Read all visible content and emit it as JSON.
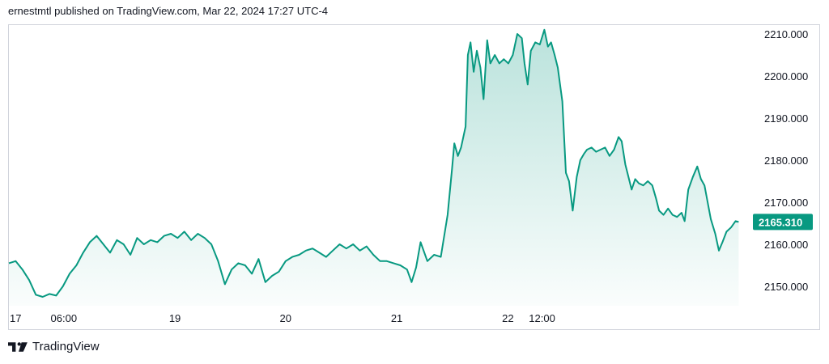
{
  "header": {
    "published_text": "ernestmtl published on TradingView.com, Mar 22, 2024 17:27 UTC-4"
  },
  "footer": {
    "brand_label": "TradingView",
    "logo_icon": "tradingview-logo-icon"
  },
  "colors": {
    "line": "#089981",
    "fill_top": "#089981",
    "price_tag_bg": "#089981",
    "grid_border": "#d1d4dc"
  },
  "chart_data": {
    "type": "area",
    "title": "",
    "xlabel": "",
    "ylabel": "",
    "ylim": [
      2145,
      2212
    ],
    "y_ticks": [
      "2210.000",
      "2200.000",
      "2190.000",
      "2180.000",
      "2170.000",
      "2160.000",
      "2150.000"
    ],
    "x_ticks": [
      "17",
      "06:00",
      "19",
      "20",
      "21",
      "22",
      "12:00"
    ],
    "last_price_label": "2165.310",
    "series": [
      {
        "values": [
          [
            0,
            2155.5
          ],
          [
            1.5,
            2156.0
          ],
          [
            3,
            2154.0
          ],
          [
            4.5,
            2151.5
          ],
          [
            6,
            2148.0
          ],
          [
            7.5,
            2147.5
          ],
          [
            9,
            2148.2
          ],
          [
            10.5,
            2147.8
          ],
          [
            12,
            2150.0
          ],
          [
            13.5,
            2153.0
          ],
          [
            15,
            2155.0
          ],
          [
            16.5,
            2158.0
          ],
          [
            18,
            2160.5
          ],
          [
            19.5,
            2162.0
          ],
          [
            21,
            2160.0
          ],
          [
            22.5,
            2158.0
          ],
          [
            24,
            2161.0
          ],
          [
            25.5,
            2160.0
          ],
          [
            27,
            2157.5
          ],
          [
            28.5,
            2161.5
          ],
          [
            30,
            2160.0
          ],
          [
            31.5,
            2161.0
          ],
          [
            33,
            2160.5
          ],
          [
            34.5,
            2162.0
          ],
          [
            36,
            2162.5
          ],
          [
            37.5,
            2161.5
          ],
          [
            39,
            2163.0
          ],
          [
            40.5,
            2161.0
          ],
          [
            42,
            2162.5
          ],
          [
            43.5,
            2161.5
          ],
          [
            45,
            2160.0
          ],
          [
            46.5,
            2156.0
          ],
          [
            48,
            2150.5
          ],
          [
            49.5,
            2154.0
          ],
          [
            51,
            2155.5
          ],
          [
            52.5,
            2155.0
          ],
          [
            54,
            2153.0
          ],
          [
            55.5,
            2156.5
          ],
          [
            57,
            2151.0
          ],
          [
            58.5,
            2152.5
          ],
          [
            60,
            2153.5
          ],
          [
            61.5,
            2156.0
          ],
          [
            63,
            2157.0
          ],
          [
            64.5,
            2157.5
          ],
          [
            66,
            2158.5
          ],
          [
            67.5,
            2159.0
          ],
          [
            69,
            2158.0
          ],
          [
            70.5,
            2157.0
          ],
          [
            72,
            2158.5
          ],
          [
            73.5,
            2160.0
          ],
          [
            75,
            2159.0
          ],
          [
            76.5,
            2160.0
          ],
          [
            78,
            2158.5
          ],
          [
            79.5,
            2159.5
          ],
          [
            81,
            2157.5
          ],
          [
            82.5,
            2156.0
          ],
          [
            84,
            2156.0
          ],
          [
            85.5,
            2155.5
          ],
          [
            87,
            2155.0
          ],
          [
            88.5,
            2154.0
          ],
          [
            89.5,
            2151.0
          ],
          [
            90.5,
            2154.5
          ],
          [
            91.5,
            2160.5
          ],
          [
            93,
            2156.0
          ],
          [
            94.5,
            2157.5
          ],
          [
            96,
            2157.0
          ],
          [
            97.5,
            2167.0
          ],
          [
            98.5,
            2178.0
          ],
          [
            99,
            2184.0
          ],
          [
            99.8,
            2181.0
          ],
          [
            100.5,
            2183.0
          ],
          [
            101.5,
            2188.0
          ],
          [
            102,
            2205.0
          ],
          [
            102.6,
            2208.0
          ],
          [
            103.3,
            2201.0
          ],
          [
            104,
            2206.0
          ],
          [
            104.8,
            2202.0
          ],
          [
            105.5,
            2194.5
          ],
          [
            106.3,
            2208.5
          ],
          [
            107,
            2203.0
          ],
          [
            108,
            2205.0
          ],
          [
            109,
            2203.0
          ],
          [
            110,
            2204.0
          ],
          [
            111,
            2203.0
          ],
          [
            112,
            2205.0
          ],
          [
            113,
            2210.0
          ],
          [
            114,
            2209.0
          ],
          [
            114.6,
            2203.0
          ],
          [
            115.3,
            2198.0
          ],
          [
            116,
            2206.0
          ],
          [
            117,
            2208.0
          ],
          [
            118,
            2207.5
          ],
          [
            119,
            2211.0
          ],
          [
            119.8,
            2207.0
          ],
          [
            120.5,
            2208.0
          ],
          [
            121.3,
            2205.0
          ],
          [
            122,
            2202.0
          ],
          [
            123,
            2194.0
          ],
          [
            123.8,
            2177.0
          ],
          [
            124.5,
            2175.0
          ],
          [
            125.3,
            2168.0
          ],
          [
            126.2,
            2176.0
          ],
          [
            127,
            2180.0
          ],
          [
            127.8,
            2181.5
          ],
          [
            128.5,
            2182.5
          ],
          [
            129.5,
            2183.0
          ],
          [
            130.5,
            2182.0
          ],
          [
            131.5,
            2182.5
          ],
          [
            132.5,
            2183.0
          ],
          [
            133.5,
            2181.0
          ],
          [
            134.5,
            2182.5
          ],
          [
            135.5,
            2185.5
          ],
          [
            136.2,
            2184.5
          ],
          [
            137,
            2179.0
          ],
          [
            137.7,
            2176.0
          ],
          [
            138.4,
            2173.0
          ],
          [
            139.2,
            2175.5
          ],
          [
            140,
            2174.5
          ],
          [
            141,
            2174.0
          ],
          [
            142,
            2175.0
          ],
          [
            143,
            2174.0
          ],
          [
            143.8,
            2171.0
          ],
          [
            144.5,
            2168.0
          ],
          [
            145.5,
            2167.0
          ],
          [
            146.5,
            2168.5
          ],
          [
            147.5,
            2167.0
          ],
          [
            148.5,
            2166.5
          ],
          [
            149.5,
            2167.5
          ],
          [
            150.2,
            2165.5
          ],
          [
            151,
            2173.0
          ],
          [
            152,
            2176.0
          ],
          [
            153,
            2178.5
          ],
          [
            153.8,
            2175.5
          ],
          [
            154.6,
            2174.0
          ],
          [
            155.3,
            2170.0
          ],
          [
            156,
            2166.0
          ],
          [
            157,
            2162.5
          ],
          [
            157.8,
            2158.5
          ],
          [
            158.6,
            2160.5
          ],
          [
            159.5,
            2163.0
          ],
          [
            160.5,
            2164.0
          ],
          [
            161.5,
            2165.5
          ],
          [
            162.2,
            2165.3
          ]
        ]
      }
    ],
    "x_tick_positions": [
      0,
      12.2,
      36.9,
      61.5,
      86.2,
      110.9,
      118.5
    ]
  }
}
